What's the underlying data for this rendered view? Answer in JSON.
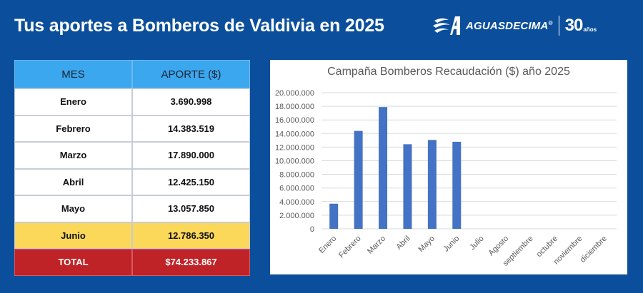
{
  "header": {
    "title": "Tus aportes a Bomberos de Valdivia en 2025"
  },
  "logo": {
    "brand": "AGUASDECIMA",
    "reg": "®",
    "years": "30",
    "anos": "años",
    "icon": "aguasdecima-logo-icon"
  },
  "table": {
    "headers": [
      "MES",
      "APORTE ($)"
    ],
    "rows": [
      {
        "mes": "Enero",
        "aporte": "3.690.998"
      },
      {
        "mes": "Febrero",
        "aporte": "14.383.519"
      },
      {
        "mes": "Marzo",
        "aporte": "17.890.000"
      },
      {
        "mes": "Abril",
        "aporte": "12.425.150"
      },
      {
        "mes": "Mayo",
        "aporte": "13.057.850"
      },
      {
        "mes": "Junio",
        "aporte": "12.786.350"
      }
    ],
    "total": {
      "label": "TOTAL",
      "value": "$74.233.867"
    }
  },
  "colors": {
    "background": "#0b4f9c",
    "header_cell": "#3aa7ef",
    "highlight_row": "#fbd75a",
    "total_row": "#bf2328",
    "bar": "#4472c4"
  },
  "chart_data": {
    "type": "bar",
    "title": "Campaña Bomberos Recaudación ($) año 2025",
    "categories": [
      "Enero",
      "Febrero",
      "Marzo",
      "Abril",
      "Mayo",
      "Junio",
      "Julio",
      "Agosto",
      "septiembre",
      "octubre",
      "noviembre",
      "diciembre"
    ],
    "values": [
      3690998,
      14383519,
      17890000,
      12425150,
      13057850,
      12786350,
      null,
      null,
      null,
      null,
      null,
      null
    ],
    "ylim": [
      0,
      20000000
    ],
    "yticks": [
      "0",
      "2.000.000",
      "4.000.000",
      "6.000.000",
      "8.000.000",
      "10.000.000",
      "12.000.000",
      "14.000.000",
      "16.000.000",
      "18.000.000",
      "20.000.000"
    ],
    "grid": true,
    "legend": "none"
  }
}
